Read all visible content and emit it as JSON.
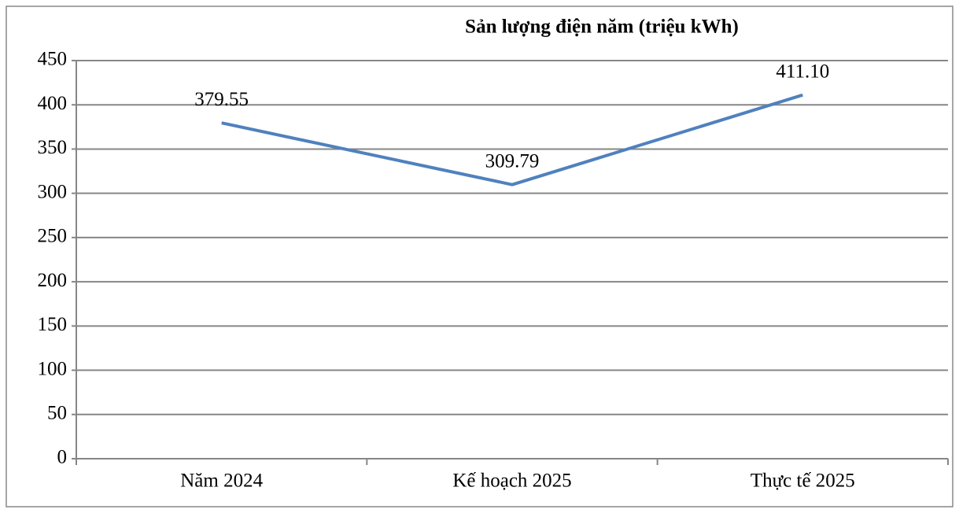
{
  "chart_data": {
    "type": "line",
    "title": "Sản lượng điện năm (triệu kWh)",
    "categories": [
      "Năm 2024",
      "Kế hoạch 2025",
      "Thực tế 2025"
    ],
    "series": [
      {
        "color": "#4f81bd",
        "values": [
          379.55,
          309.79,
          411.1
        ],
        "value_labels": [
          "379.55",
          "309.79",
          "411.10"
        ]
      }
    ],
    "ylim": [
      0,
      450
    ],
    "yticks": [
      0,
      50,
      100,
      150,
      200,
      250,
      300,
      350,
      400,
      450
    ],
    "grid": true
  }
}
